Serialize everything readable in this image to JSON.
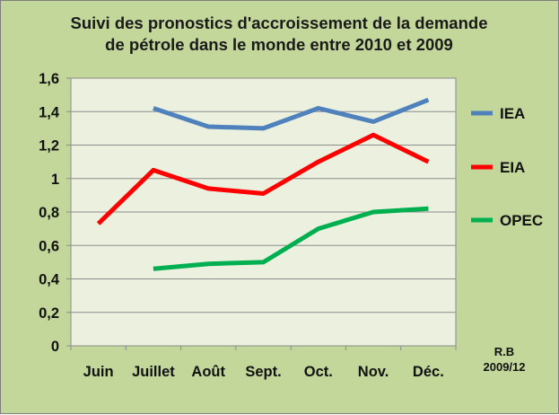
{
  "chart_data": {
    "type": "line",
    "title_lines": [
      "Suivi des pronostics d'accroissement de la demande",
      "de pétrole dans le monde entre 2010 et 2009"
    ],
    "categories": [
      "Juin",
      "Juillet",
      "Août",
      "Sept.",
      "Oct.",
      "Nov.",
      "Déc."
    ],
    "y_ticks": [
      "0",
      "0,2",
      "0,4",
      "0,6",
      "0,8",
      "1",
      "1,2",
      "1,4",
      "1,6"
    ],
    "ylim": [
      0,
      1.6
    ],
    "grid": "horizontal",
    "legend_position": "right",
    "series": [
      {
        "name": "IEA",
        "color": "#4f81bd",
        "values": [
          null,
          1.42,
          1.31,
          1.3,
          1.42,
          1.34,
          1.47
        ]
      },
      {
        "name": "EIA",
        "color": "#ff0000",
        "values": [
          0.73,
          1.05,
          0.94,
          0.91,
          1.1,
          1.26,
          1.1
        ]
      },
      {
        "name": "OPEC",
        "color": "#00b050",
        "values": [
          null,
          0.46,
          0.49,
          0.5,
          0.7,
          0.8,
          0.82
        ]
      }
    ],
    "credit_lines": [
      "R.B",
      "2009/12"
    ],
    "plot_background": "#ebf1de"
  }
}
